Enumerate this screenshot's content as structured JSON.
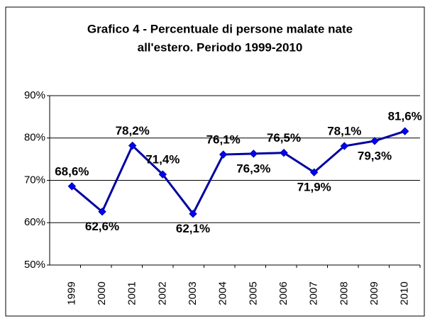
{
  "chart_data": {
    "type": "line",
    "title": [
      "Grafico 4 - Percentuale di persone malate nate",
      "all'estero. Periodo 1999-2010"
    ],
    "categories": [
      "1999",
      "2000",
      "2001",
      "2002",
      "2003",
      "2004",
      "2005",
      "2006",
      "2007",
      "2008",
      "2009",
      "2010"
    ],
    "series": [
      {
        "color": "#0000a0",
        "values": [
          68.6,
          62.6,
          78.2,
          71.4,
          62.1,
          76.1,
          76.3,
          76.5,
          71.9,
          78.1,
          79.3,
          81.6
        ],
        "value_labels": [
          "68,6%",
          "62,6%",
          "78,2%",
          "71,4%",
          "62,1%",
          "76,1%",
          "76,3%",
          "76,5%",
          "71,9%",
          "78,1%",
          "79,3%",
          "81,6%"
        ]
      }
    ],
    "ylim": [
      50,
      90
    ],
    "yticks": [
      {
        "value": 50,
        "label": "50%"
      },
      {
        "value": 60,
        "label": "60%"
      },
      {
        "value": 70,
        "label": "70%"
      },
      {
        "value": 80,
        "label": "80%"
      },
      {
        "value": 90,
        "label": "90%"
      }
    ],
    "grid": true
  }
}
